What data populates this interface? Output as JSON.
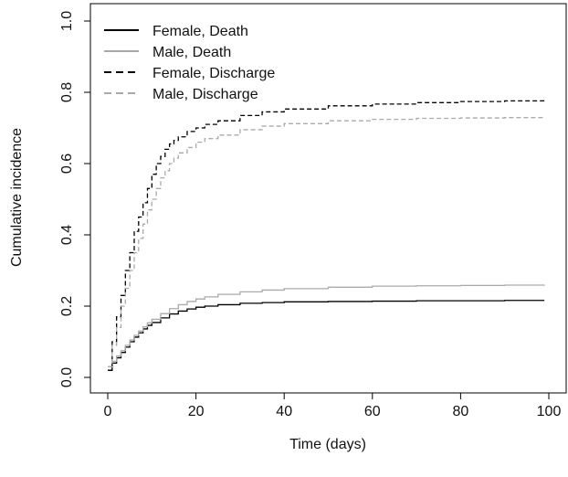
{
  "chart_data": {
    "type": "line",
    "title": "",
    "xlabel": "Time (days)",
    "ylabel": "Cumulative incidence",
    "xlim": [
      0,
      100
    ],
    "ylim": [
      0,
      1.0
    ],
    "x_ticks": [
      "0",
      "20",
      "40",
      "60",
      "80",
      "100"
    ],
    "y_ticks": [
      "0.0",
      "0.2",
      "0.4",
      "0.6",
      "0.8",
      "1.0"
    ],
    "legend_position": "top-left",
    "grid": false,
    "series": [
      {
        "name": "Female, Death",
        "color": "#000000",
        "dash": "solid",
        "x": [
          0,
          1,
          2,
          3,
          4,
          5,
          6,
          7,
          8,
          9,
          10,
          12,
          14,
          16,
          18,
          20,
          22,
          25,
          30,
          35,
          40,
          50,
          60,
          70,
          80,
          90,
          99
        ],
        "y": [
          0.02,
          0.04,
          0.055,
          0.07,
          0.085,
          0.1,
          0.113,
          0.125,
          0.136,
          0.146,
          0.154,
          0.167,
          0.178,
          0.186,
          0.192,
          0.197,
          0.2,
          0.204,
          0.208,
          0.21,
          0.212,
          0.213,
          0.214,
          0.215,
          0.215,
          0.216,
          0.216
        ]
      },
      {
        "name": "Male, Death",
        "color": "#aaaaaa",
        "dash": "solid",
        "x": [
          0,
          1,
          2,
          3,
          4,
          5,
          6,
          7,
          8,
          9,
          10,
          12,
          14,
          16,
          18,
          20,
          22,
          25,
          30,
          35,
          40,
          50,
          60,
          70,
          80,
          90,
          99
        ],
        "y": [
          0.03,
          0.045,
          0.06,
          0.075,
          0.09,
          0.105,
          0.118,
          0.13,
          0.142,
          0.153,
          0.163,
          0.179,
          0.193,
          0.204,
          0.213,
          0.22,
          0.226,
          0.233,
          0.24,
          0.245,
          0.249,
          0.253,
          0.256,
          0.257,
          0.258,
          0.259,
          0.26
        ]
      },
      {
        "name": "Female, Discharge",
        "color": "#000000",
        "dash": "dashed",
        "x": [
          0,
          1,
          2,
          3,
          4,
          5,
          6,
          7,
          8,
          9,
          10,
          11,
          12,
          13,
          14,
          15,
          16,
          18,
          20,
          22,
          25,
          30,
          35,
          40,
          50,
          60,
          70,
          80,
          90,
          99
        ],
        "y": [
          0.02,
          0.1,
          0.17,
          0.23,
          0.3,
          0.35,
          0.41,
          0.45,
          0.49,
          0.53,
          0.57,
          0.6,
          0.62,
          0.64,
          0.655,
          0.665,
          0.675,
          0.69,
          0.7,
          0.71,
          0.72,
          0.735,
          0.745,
          0.753,
          0.762,
          0.767,
          0.771,
          0.774,
          0.776,
          0.778
        ]
      },
      {
        "name": "Male, Discharge",
        "color": "#aaaaaa",
        "dash": "dashed",
        "x": [
          0,
          1,
          2,
          3,
          4,
          5,
          6,
          7,
          8,
          9,
          10,
          11,
          12,
          13,
          14,
          15,
          16,
          18,
          20,
          22,
          25,
          30,
          35,
          40,
          50,
          60,
          70,
          80,
          90,
          99
        ],
        "y": [
          0.03,
          0.09,
          0.14,
          0.2,
          0.25,
          0.3,
          0.35,
          0.39,
          0.43,
          0.47,
          0.5,
          0.53,
          0.56,
          0.58,
          0.6,
          0.615,
          0.63,
          0.645,
          0.66,
          0.67,
          0.68,
          0.695,
          0.705,
          0.712,
          0.72,
          0.724,
          0.727,
          0.728,
          0.729,
          0.73
        ]
      }
    ]
  }
}
